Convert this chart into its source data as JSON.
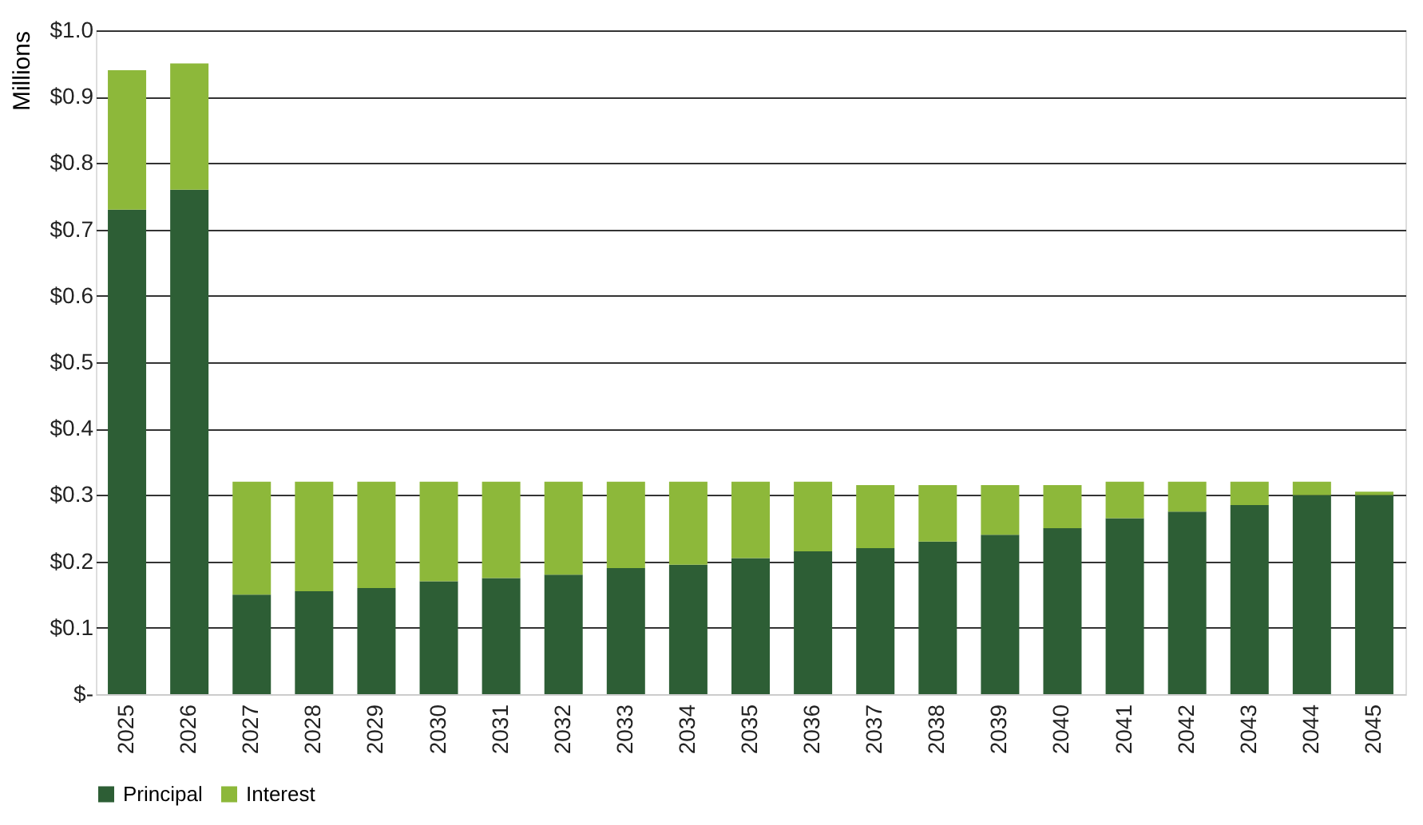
{
  "chart_data": {
    "type": "bar",
    "stacked": true,
    "ylabel": "Millions",
    "categories": [
      "2025",
      "2026",
      "2027",
      "2028",
      "2029",
      "2030",
      "2031",
      "2032",
      "2033",
      "2034",
      "2035",
      "2036",
      "2037",
      "2038",
      "2039",
      "2040",
      "2041",
      "2042",
      "2043",
      "2044",
      "2045"
    ],
    "series": [
      {
        "name": "Principal",
        "color": "#2d5e35",
        "values": [
          0.73,
          0.76,
          0.15,
          0.155,
          0.16,
          0.17,
          0.175,
          0.18,
          0.19,
          0.195,
          0.205,
          0.215,
          0.22,
          0.23,
          0.24,
          0.25,
          0.265,
          0.275,
          0.285,
          0.3,
          0.3
        ]
      },
      {
        "name": "Interest",
        "color": "#8db83a",
        "values": [
          0.21,
          0.19,
          0.17,
          0.165,
          0.16,
          0.15,
          0.145,
          0.14,
          0.13,
          0.125,
          0.115,
          0.105,
          0.095,
          0.085,
          0.075,
          0.065,
          0.055,
          0.045,
          0.035,
          0.02,
          0.005
        ]
      }
    ],
    "ylim": [
      0,
      1.0
    ],
    "yticks": [
      {
        "value": 0,
        "label": "$-"
      },
      {
        "value": 0.1,
        "label": "$0.1"
      },
      {
        "value": 0.2,
        "label": "$0.2"
      },
      {
        "value": 0.3,
        "label": "$0.3"
      },
      {
        "value": 0.4,
        "label": "$0.4"
      },
      {
        "value": 0.5,
        "label": "$0.5"
      },
      {
        "value": 0.6,
        "label": "$0.6"
      },
      {
        "value": 0.7,
        "label": "$0.7"
      },
      {
        "value": 0.8,
        "label": "$0.8"
      },
      {
        "value": 0.9,
        "label": "$0.9"
      },
      {
        "value": 1.0,
        "label": "$1.0"
      }
    ],
    "grid": "y",
    "legend": "bottom"
  }
}
